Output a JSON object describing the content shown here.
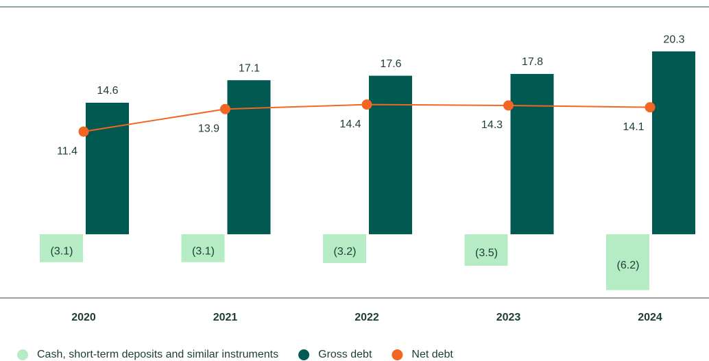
{
  "chart_data": {
    "type": "bar-line",
    "categories": [
      "2020",
      "2021",
      "2022",
      "2023",
      "2024"
    ],
    "series": [
      {
        "name": "Cash, short-term deposits and similar instruments",
        "type": "bar",
        "color": "#b5ecc3",
        "values": [
          -3.1,
          -3.1,
          -3.2,
          -3.5,
          -6.2
        ],
        "value_labels": [
          "(3.1)",
          "(3.1)",
          "(3.2)",
          "(3.5)",
          "(6.2)"
        ]
      },
      {
        "name": "Gross debt",
        "type": "bar",
        "color": "#005a51",
        "values": [
          14.6,
          17.1,
          17.6,
          17.8,
          20.3
        ]
      },
      {
        "name": "Net debt",
        "type": "line",
        "color": "#f26522",
        "values": [
          11.4,
          13.9,
          14.4,
          14.3,
          14.1
        ]
      }
    ],
    "ylim": [
      -7,
      22
    ],
    "legend": "bottom"
  }
}
